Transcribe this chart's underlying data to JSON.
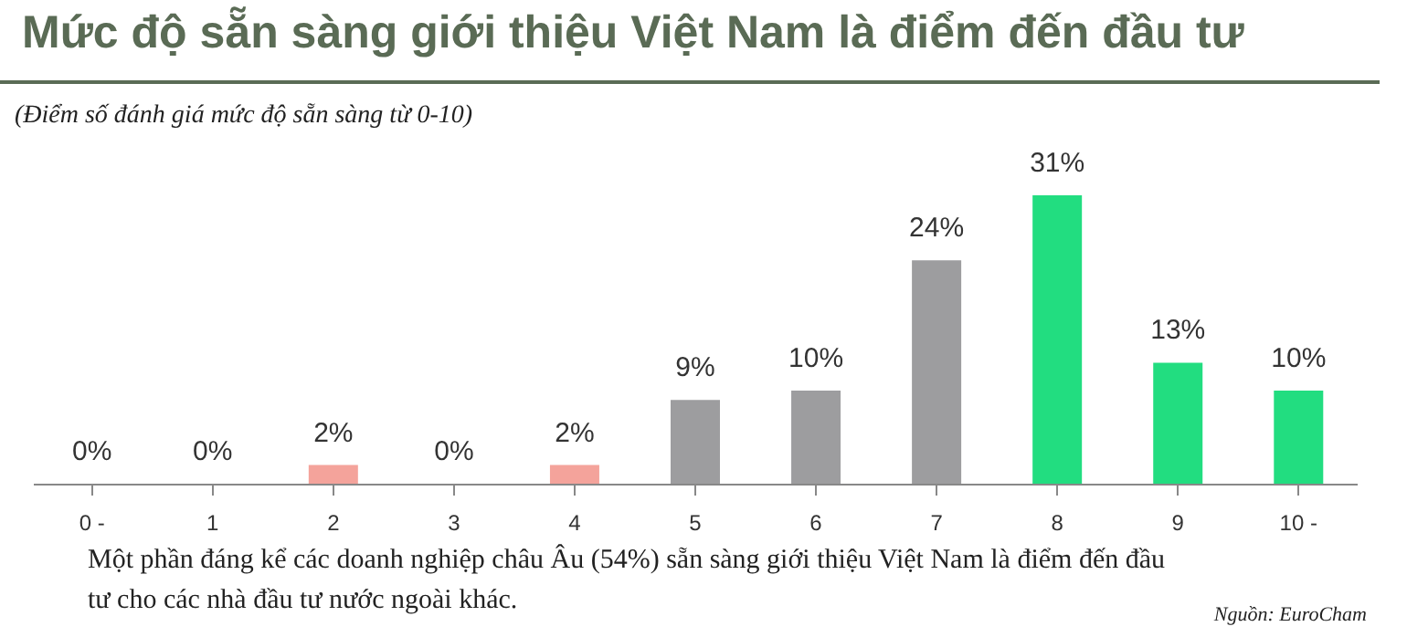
{
  "chart_data": {
    "type": "bar",
    "title": "Mức độ sẵn sàng giới thiệu Việt Nam là điểm đến đầu tư",
    "subtitle": "(Điểm số đánh giá mức độ sẵn sàng từ 0-10)",
    "categories": [
      "0 -",
      "1",
      "2",
      "3",
      "4",
      "5",
      "6",
      "7",
      "8",
      "9",
      "10 -"
    ],
    "values": [
      0,
      0,
      2,
      0,
      2,
      9,
      10,
      24,
      31,
      13,
      10
    ],
    "value_labels": [
      "0%",
      "0%",
      "2%",
      "0%",
      "2%",
      "9%",
      "10%",
      "24%",
      "31%",
      "13%",
      "10%"
    ],
    "colors": [
      "#f4a39b",
      "#f4a39b",
      "#f4a39b",
      "#f4a39b",
      "#f4a39b",
      "#9d9d9f",
      "#9d9d9f",
      "#9d9d9f",
      "#22dd80",
      "#22dd80",
      "#22dd80"
    ],
    "tick_labels": "x",
    "annotations": [
      "Một phần đáng kể các doanh nghiệp châu Âu (54%) sẵn sàng giới thiệu Việt Nam là điểm đến đầu tư cho các nhà đầu tư nước ngoài khác.",
      "Nguồn: EuroCham"
    ]
  }
}
